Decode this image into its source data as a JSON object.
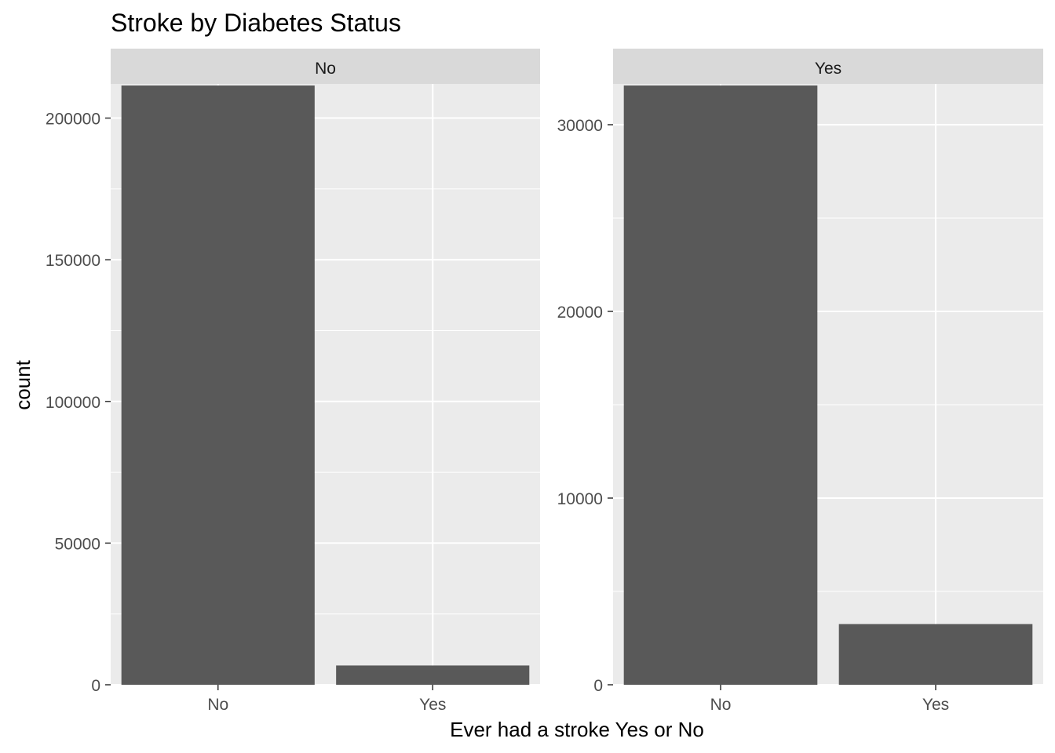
{
  "chart_data": {
    "type": "bar",
    "title": "Stroke by Diabetes Status",
    "xlabel": "Ever had a stroke Yes or No",
    "ylabel": "count",
    "grid": true,
    "legend": "none",
    "colors": {
      "bar": "#595959",
      "panel_background": "#ebebeb",
      "strip_background": "#d9d9d9",
      "grid": "#ffffff",
      "tick_text": "#4d4d4d"
    },
    "facets": [
      {
        "label": "No",
        "categories": [
          "No",
          "Yes"
        ],
        "values": [
          211500,
          6800
        ],
        "ylim": [
          0,
          211500
        ],
        "yticks": [
          0,
          50000,
          100000,
          150000,
          200000
        ],
        "ytick_labels": [
          "0",
          "50000",
          "100000",
          "150000",
          "200000"
        ]
      },
      {
        "label": "Yes",
        "categories": [
          "No",
          "Yes"
        ],
        "values": [
          32100,
          3250
        ],
        "ylim": [
          0,
          32100
        ],
        "yticks": [
          0,
          10000,
          20000,
          30000
        ],
        "ytick_labels": [
          "0",
          "10000",
          "20000",
          "30000"
        ]
      }
    ]
  }
}
